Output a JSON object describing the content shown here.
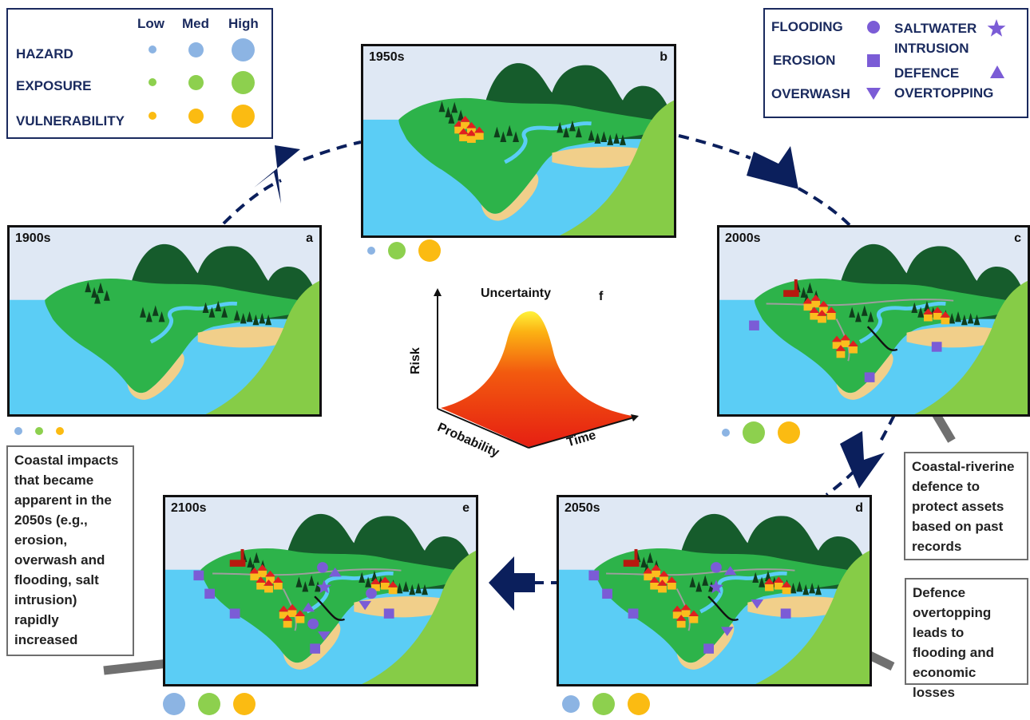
{
  "legend_levels": {
    "columns": [
      "Low",
      "Med",
      "High"
    ],
    "rows": [
      {
        "label": "HAZARD",
        "color": "#8cb4e3"
      },
      {
        "label": "EXPOSURE",
        "color": "#8dd04e"
      },
      {
        "label": "VULNERABILITY",
        "color": "#fbbb12"
      }
    ]
  },
  "legend_impacts": {
    "flooding": "FLOODING",
    "erosion": "EROSION",
    "overwash": "OVERWASH",
    "saltwater_1": "SALTWATER",
    "saltwater_2": "INTRUSION",
    "defence_1": "DEFENCE",
    "defence_2": "OVERTOPPING",
    "marker_color": "#7b5cd6"
  },
  "panels": [
    {
      "id": "a",
      "era": "1900s",
      "letter": "a",
      "levels": {
        "hazard": "low",
        "exposure": "low",
        "vulnerability": "low"
      }
    },
    {
      "id": "b",
      "era": "1950s",
      "letter": "b",
      "levels": {
        "hazard": "low",
        "exposure": "med",
        "vulnerability": "high"
      }
    },
    {
      "id": "c",
      "era": "2000s",
      "letter": "c",
      "levels": {
        "hazard": "low",
        "exposure": "high",
        "vulnerability": "high"
      }
    },
    {
      "id": "d",
      "era": "2050s",
      "letter": "d",
      "levels": {
        "hazard": "med",
        "exposure": "high",
        "vulnerability": "high"
      }
    },
    {
      "id": "e",
      "era": "2100s",
      "letter": "e",
      "levels": {
        "hazard": "high",
        "exposure": "high",
        "vulnerability": "high"
      }
    }
  ],
  "risk_plot": {
    "letter": "f",
    "peak_label": "Uncertainty",
    "y_axis": "Risk",
    "x_axis_left": "Probability",
    "x_axis_right": "Time"
  },
  "callouts": {
    "left": [
      "Coastal impacts",
      "that became",
      "apparent in the",
      "2050s (e.g.,",
      "erosion,",
      "overwash and",
      "flooding, salt",
      "intrusion)",
      "rapidly",
      "increased"
    ],
    "right_top": [
      "Coastal-riverine",
      "defence to",
      "protect assets",
      "based on past",
      "records"
    ],
    "right_bottom": [
      "Defence",
      "overtopping",
      "leads to",
      "flooding and",
      "economic losses"
    ]
  },
  "colors": {
    "navy": "#0b1f5c",
    "sea": "#5bcdf5",
    "land": "#2db34a",
    "mountain": "#165c2c",
    "cliff": "#86cc47",
    "sand": "#f1cf8a",
    "roof": "#e02020",
    "house": "#fbbd1e"
  }
}
